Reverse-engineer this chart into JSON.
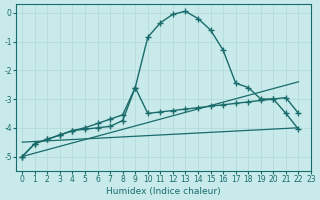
{
  "xlabel": "Humidex (Indice chaleur)",
  "background_color": "#c8eaea",
  "grid_color": "#b0d8d8",
  "line_color": "#1a6b6b",
  "xlim": [
    -0.5,
    23
  ],
  "ylim": [
    -5.5,
    0.3
  ],
  "yticks": [
    0,
    -1,
    -2,
    -3,
    -4,
    -5
  ],
  "xticks": [
    0,
    1,
    2,
    3,
    4,
    5,
    6,
    7,
    8,
    9,
    10,
    11,
    12,
    13,
    14,
    15,
    16,
    17,
    18,
    19,
    20,
    21,
    22,
    23
  ],
  "curves": [
    {
      "x": [
        0,
        1,
        2,
        3,
        4,
        5,
        6,
        7,
        8,
        9,
        10,
        11,
        12,
        13,
        14,
        15,
        16,
        17,
        18,
        19,
        20,
        21,
        22
      ],
      "y": [
        -5.0,
        -4.55,
        -4.4,
        -4.25,
        -4.1,
        -4.0,
        -3.85,
        -3.7,
        -3.55,
        -2.6,
        -0.85,
        -0.35,
        -0.05,
        0.05,
        -0.2,
        -0.6,
        -1.3,
        -2.45,
        -2.6,
        -3.0,
        -3.0,
        -3.5,
        -4.05
      ],
      "marker": "+",
      "markersize": 4,
      "linewidth": 1.0,
      "linestyle": "-"
    },
    {
      "x": [
        0,
        1,
        2,
        3,
        4,
        5,
        6,
        7,
        8,
        9,
        10,
        11,
        12,
        13,
        14,
        15,
        16,
        17,
        18,
        19,
        20,
        21,
        22
      ],
      "y": [
        -5.0,
        -4.55,
        -4.4,
        -4.25,
        -4.1,
        -4.05,
        -4.0,
        -3.95,
        -3.75,
        -2.6,
        -3.5,
        -3.45,
        -3.4,
        -3.35,
        -3.3,
        -3.25,
        -3.2,
        -3.15,
        -3.1,
        -3.05,
        -3.0,
        -2.95,
        -3.5
      ],
      "marker": "+",
      "markersize": 4,
      "linewidth": 1.0,
      "linestyle": "-"
    },
    {
      "x": [
        0,
        22
      ],
      "y": [
        -5.0,
        -2.4
      ],
      "marker": null,
      "markersize": 0,
      "linewidth": 0.9,
      "linestyle": "-"
    },
    {
      "x": [
        0,
        22
      ],
      "y": [
        -4.5,
        -4.0
      ],
      "marker": null,
      "markersize": 0,
      "linewidth": 0.9,
      "linestyle": "-"
    }
  ]
}
